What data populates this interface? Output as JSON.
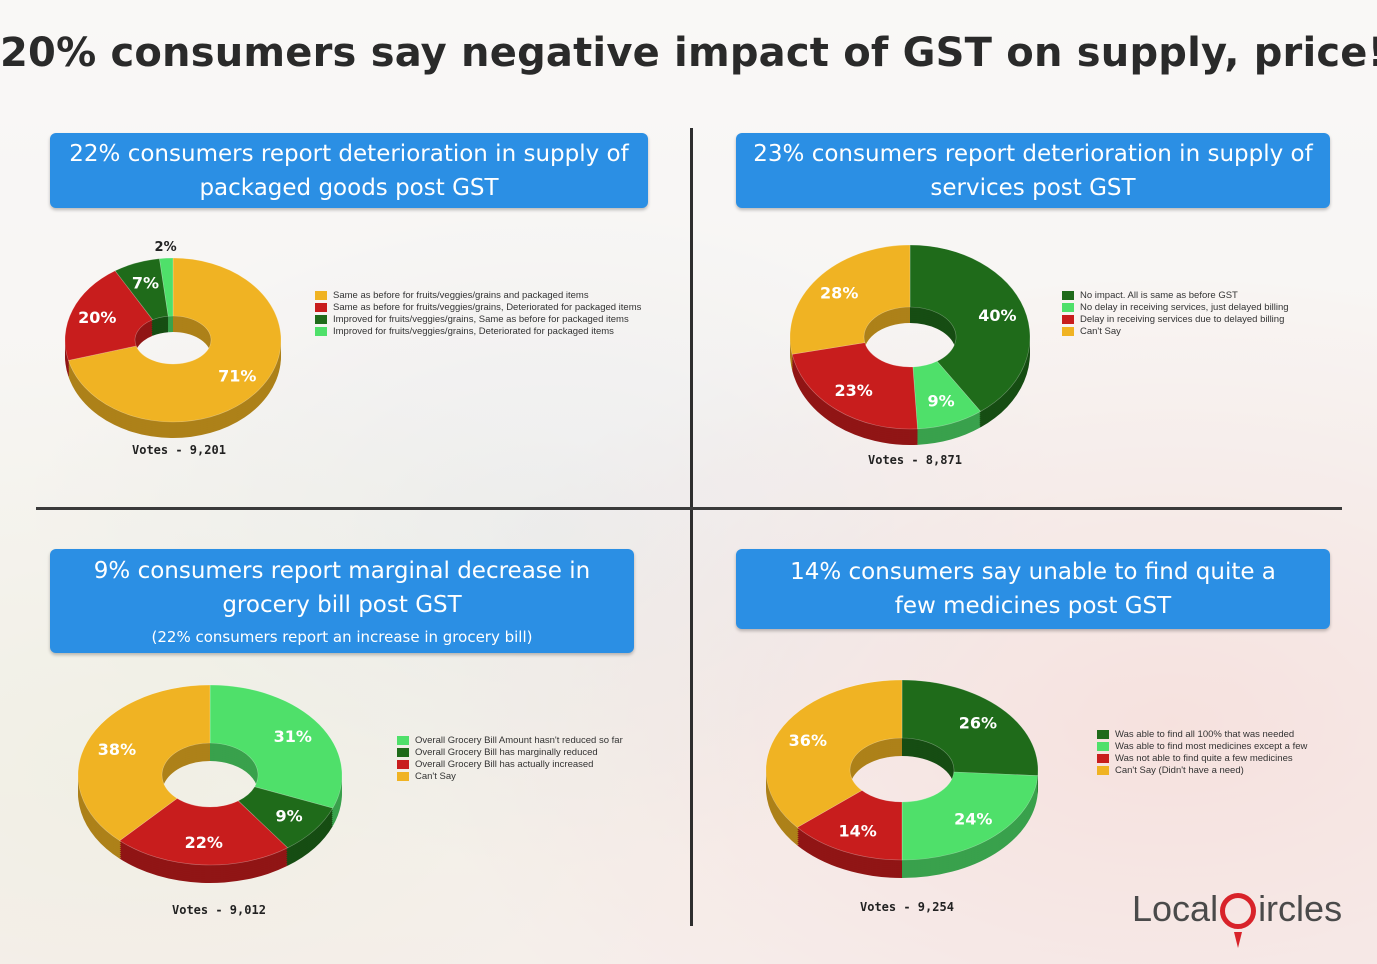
{
  "title": "20% consumers say negative impact of GST on supply, price!",
  "colors": {
    "yellow": "#f0b323",
    "red": "#c81d1d",
    "dark_green": "#1f6b1a",
    "light_green": "#4fe06a",
    "banner": "#2b8fe4",
    "logo_red": "#d8232a"
  },
  "logo": {
    "part1": "Local",
    "part2": "ircles"
  },
  "chart_data": [
    {
      "type": "pie",
      "title": "22% consumers report deterioration in supply of packaged goods post GST",
      "subtitle": "",
      "votes": "Votes - 9,201",
      "categories": [
        "Same as before for fruits/veggies/grains and packaged items",
        "Same as before for fruits/veggies/grains, Deteriorated for packaged items",
        "Improved for fruits/veggies/grains, Same as before for packaged items",
        "Improved for fruits/veggies/grains, Deteriorated for packaged items"
      ],
      "values": [
        71,
        20,
        7,
        2
      ],
      "labels": [
        "71%",
        "20%",
        "7%",
        "2%"
      ],
      "colors": [
        "#f0b323",
        "#c81d1d",
        "#1f6b1a",
        "#4fe06a"
      ],
      "legend": "right"
    },
    {
      "type": "pie",
      "title": "23% consumers report deterioration in supply of services post GST",
      "subtitle": "",
      "votes": "Votes - 8,871",
      "categories": [
        "No impact. All is same as before GST",
        "No delay in receiving services, just delayed billing",
        "Delay in receiving services due to delayed billing",
        "Can't Say"
      ],
      "values": [
        40,
        9,
        23,
        28
      ],
      "labels": [
        "40%",
        "9%",
        "23%",
        "28%"
      ],
      "colors": [
        "#1f6b1a",
        "#4fe06a",
        "#c81d1d",
        "#f0b323"
      ],
      "legend": "right"
    },
    {
      "type": "pie",
      "title": "9% consumers report marginal decrease in grocery bill post GST",
      "subtitle": "(22% consumers report an increase in grocery bill)",
      "votes": "Votes - 9,012",
      "categories": [
        "Overall Grocery Bill Amount hasn't reduced so far",
        "Overall Grocery Bill has marginally reduced",
        "Overall Grocery Bill has actually increased",
        "Can't Say"
      ],
      "values": [
        31,
        9,
        22,
        38
      ],
      "labels": [
        "31%",
        "9%",
        "22%",
        "38%"
      ],
      "colors": [
        "#4fe06a",
        "#1f6b1a",
        "#c81d1d",
        "#f0b323"
      ],
      "legend": "right"
    },
    {
      "type": "pie",
      "title": "14% consumers say unable to find quite a few medicines post GST",
      "subtitle": "",
      "votes": "Votes - 9,254",
      "categories": [
        "Was able to find all 100% that was needed",
        "Was able to find most medicines except a few",
        "Was not able to find quite a few medicines",
        "Can't Say (Didn't have a need)"
      ],
      "values": [
        26,
        24,
        14,
        36
      ],
      "labels": [
        "26%",
        "24%",
        "14%",
        "36%"
      ],
      "colors": [
        "#1f6b1a",
        "#4fe06a",
        "#c81d1d",
        "#f0b323"
      ],
      "legend": "right"
    }
  ]
}
